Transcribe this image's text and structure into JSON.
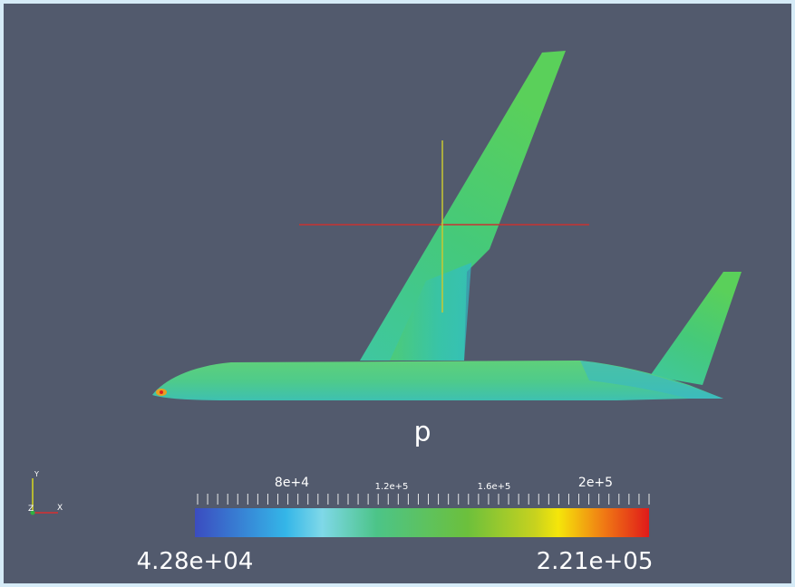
{
  "scalar_bar": {
    "title": "p",
    "tick_labels": [
      "8e+4",
      "1.2e+5",
      "1.6e+5",
      "2e+5"
    ],
    "min_label": "4.28e+04",
    "max_label": "2.21e+05"
  },
  "orientation_axes": {
    "y": "Y",
    "z": "Z",
    "x": "X"
  }
}
